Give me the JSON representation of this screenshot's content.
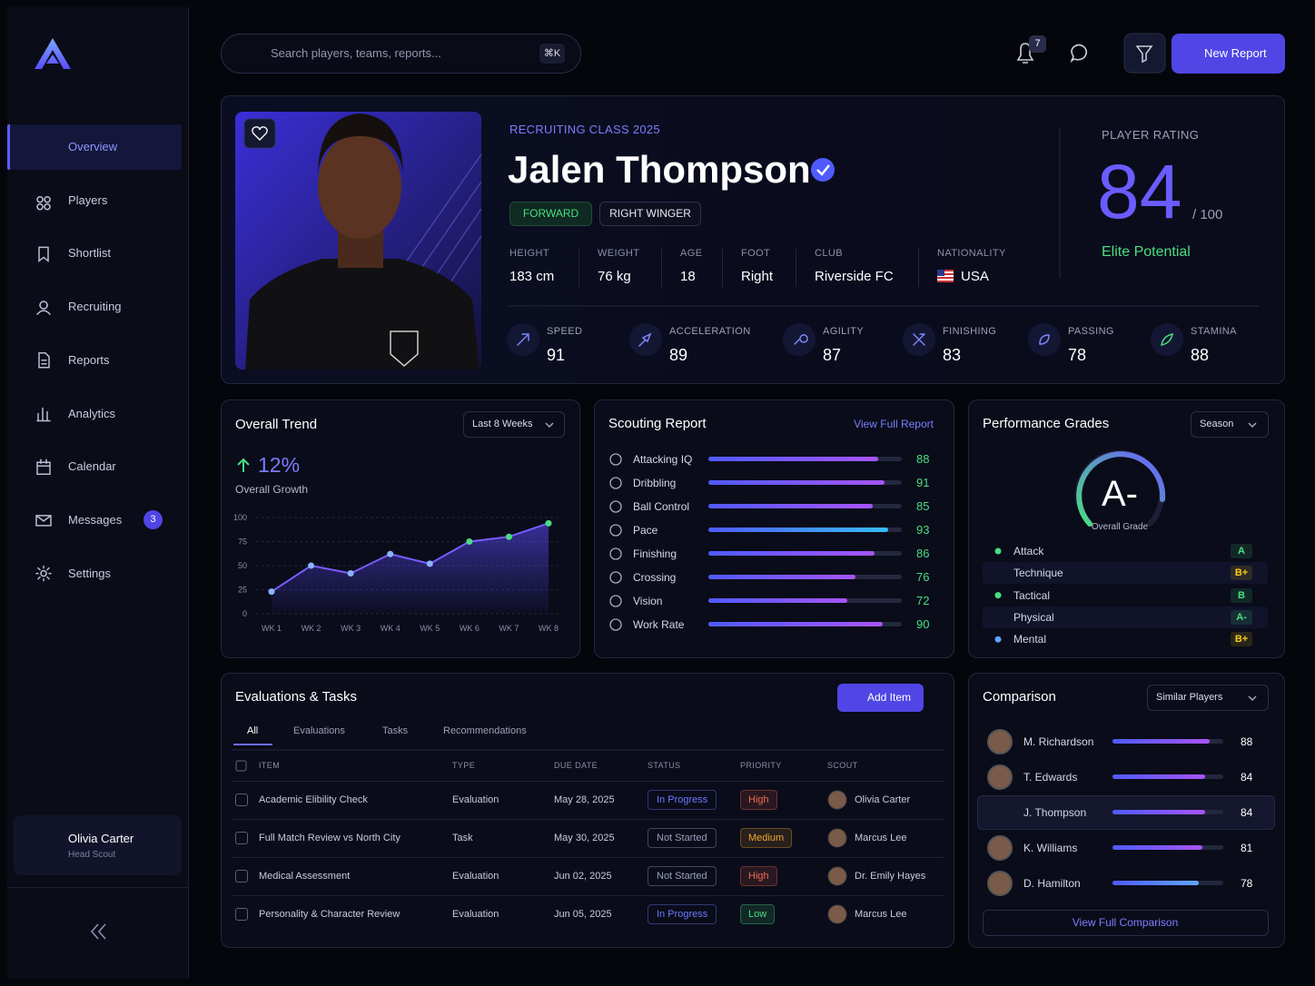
{
  "sidebar": {
    "nav": [
      "Overview",
      "Players",
      "Shortlist",
      "Recruiting",
      "Reports",
      "Analytics",
      "Calendar",
      "Messages",
      "Settings"
    ],
    "messages_badge": "3",
    "user": {
      "name": "Olivia Carter",
      "role": "Head Scout"
    }
  },
  "topbar": {
    "search_placeholder": "Search players, teams, reports...",
    "shortcut": "⌘K",
    "notifications": "7",
    "new_report": "New Report"
  },
  "profile": {
    "class": "RECRUITING CLASS 2025",
    "name": "Jalen Thompson",
    "tags": [
      "FORWARD",
      "RIGHT WINGER"
    ],
    "facts": [
      {
        "label": "HEIGHT",
        "value": "183 cm"
      },
      {
        "label": "WEIGHT",
        "value": "76 kg"
      },
      {
        "label": "AGE",
        "value": "18"
      },
      {
        "label": "FOOT",
        "value": "Right"
      },
      {
        "label": "CLUB",
        "value": "Riverside FC"
      },
      {
        "label": "NATIONALITY",
        "value": "USA"
      }
    ],
    "rating": {
      "label": "PLAYER RATING",
      "value": 84,
      "max": "/ 100",
      "tier": "Elite Potential"
    },
    "attributes": [
      {
        "label": "SPEED",
        "value": 91
      },
      {
        "label": "ACCELERATION",
        "value": 89
      },
      {
        "label": "AGILITY",
        "value": 87
      },
      {
        "label": "FINISHING",
        "value": 83
      },
      {
        "label": "PASSING",
        "value": 78
      },
      {
        "label": "STAMINA",
        "value": 88
      }
    ]
  },
  "chart_data": {
    "type": "line",
    "title": "Overall Trend",
    "range": "Last 8 Weeks",
    "growth": "12%",
    "growth_label": "Overall Growth",
    "categories": [
      "WK 1",
      "WK 2",
      "WK 3",
      "WK 4",
      "WK 5",
      "WK 6",
      "WK 7",
      "WK 8"
    ],
    "values": [
      23,
      50,
      42,
      62,
      52,
      75,
      80,
      94
    ],
    "ylim": [
      0,
      100
    ],
    "yticks": [
      0,
      25,
      50,
      75,
      100
    ],
    "color": "#7b5cff",
    "grid": true
  },
  "scouting": {
    "title": "Scouting Report",
    "link": "View Full Report",
    "items": [
      {
        "label": "Attacking IQ",
        "value": 88
      },
      {
        "label": "Dribbling",
        "value": 91
      },
      {
        "label": "Ball Control",
        "value": 85
      },
      {
        "label": "Pace",
        "value": 93
      },
      {
        "label": "Finishing",
        "value": 86
      },
      {
        "label": "Crossing",
        "value": 76
      },
      {
        "label": "Vision",
        "value": 72
      },
      {
        "label": "Work Rate",
        "value": 90
      }
    ]
  },
  "grades": {
    "title": "Performance Grades",
    "period": "Season",
    "overall": "A-",
    "overall_label": "Overall Grade",
    "items": [
      {
        "label": "Attack",
        "grade": "A",
        "color": "#4ade80"
      },
      {
        "label": "Technique",
        "grade": "B+",
        "color": "#facc15"
      },
      {
        "label": "Tactical",
        "grade": "B",
        "color": "#4ade80"
      },
      {
        "label": "Physical",
        "grade": "A-",
        "color": "#4ade80"
      },
      {
        "label": "Mental",
        "grade": "B+",
        "color": "#facc15"
      }
    ]
  },
  "evaluations": {
    "title": "Evaluations & Tasks",
    "add": "Add Item",
    "tabs": [
      "All",
      "Evaluations",
      "Tasks",
      "Recommendations"
    ],
    "columns": [
      "ITEM",
      "TYPE",
      "DUE DATE",
      "STATUS",
      "PRIORITY",
      "SCOUT"
    ],
    "rows": [
      {
        "item": "Academic Elibility Check",
        "type": "Evaluation",
        "due": "May 28, 2025",
        "status": "In Progress",
        "status_color": "#6b7bff",
        "priority": "High",
        "priority_color": "#f26b4f",
        "scout": "Olivia Carter"
      },
      {
        "item": "Full Match Review vs North City",
        "type": "Task",
        "due": "May 30, 2025",
        "status": "Not Started",
        "status_color": "#9aa0b8",
        "priority": "Medium",
        "priority_color": "#f0a530",
        "scout": "Marcus Lee"
      },
      {
        "item": "Medical Assessment",
        "type": "Evaluation",
        "due": "Jun 02, 2025",
        "status": "Not Started",
        "status_color": "#9aa0b8",
        "priority": "High",
        "priority_color": "#f26b4f",
        "scout": "Dr. Emily Hayes"
      },
      {
        "item": "Personality & Character Review",
        "type": "Evaluation",
        "due": "Jun 05, 2025",
        "status": "In Progress",
        "status_color": "#6b7bff",
        "priority": "Low",
        "priority_color": "#4ade80",
        "scout": "Marcus Lee"
      }
    ]
  },
  "comparison": {
    "title": "Comparison",
    "filter": "Similar Players",
    "players": [
      {
        "name": "M. Richardson",
        "value": 88
      },
      {
        "name": "T. Edwards",
        "value": 84
      },
      {
        "name": "J. Thompson",
        "value": 84,
        "selected": true
      },
      {
        "name": "K. Williams",
        "value": 81
      },
      {
        "name": "D. Hamilton",
        "value": 78
      }
    ],
    "link": "View Full Comparison"
  }
}
